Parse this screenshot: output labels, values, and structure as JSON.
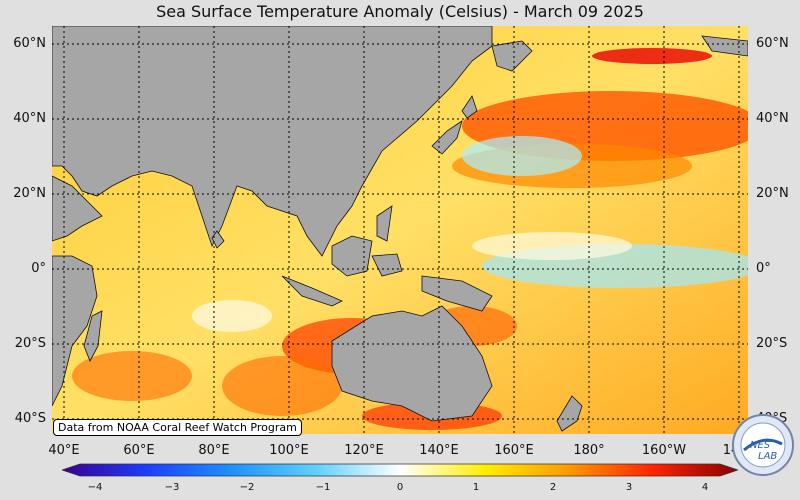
{
  "title": "Sea Surface Temperature Anomaly (Celsius) - March 09 2025",
  "lat_labels": [
    "60°N",
    "40°N",
    "20°N",
    "0°",
    "20°S",
    "40°S"
  ],
  "lon_labels": [
    "40°E",
    "60°E",
    "80°E",
    "100°E",
    "120°E",
    "140°E",
    "160°E",
    "180°",
    "160°W",
    "14"
  ],
  "credit": "Data from NOAA Coral Reef Watch Program",
  "colorbar": {
    "ticks": [
      "−4",
      "−3",
      "−2",
      "−1",
      "0",
      "1",
      "2",
      "3",
      "4"
    ],
    "range": [
      -4,
      4
    ],
    "colors": [
      "#3a008c",
      "#1e3cff",
      "#1e90ff",
      "#5fd0ff",
      "#ffffff",
      "#ffee00",
      "#ff9900",
      "#ff2200",
      "#8c0000"
    ]
  },
  "logo_text": "NESDIS LAB",
  "colors": {
    "land": "#a6a6a6",
    "background": "#e0e0e0",
    "grid": "#000000"
  }
}
